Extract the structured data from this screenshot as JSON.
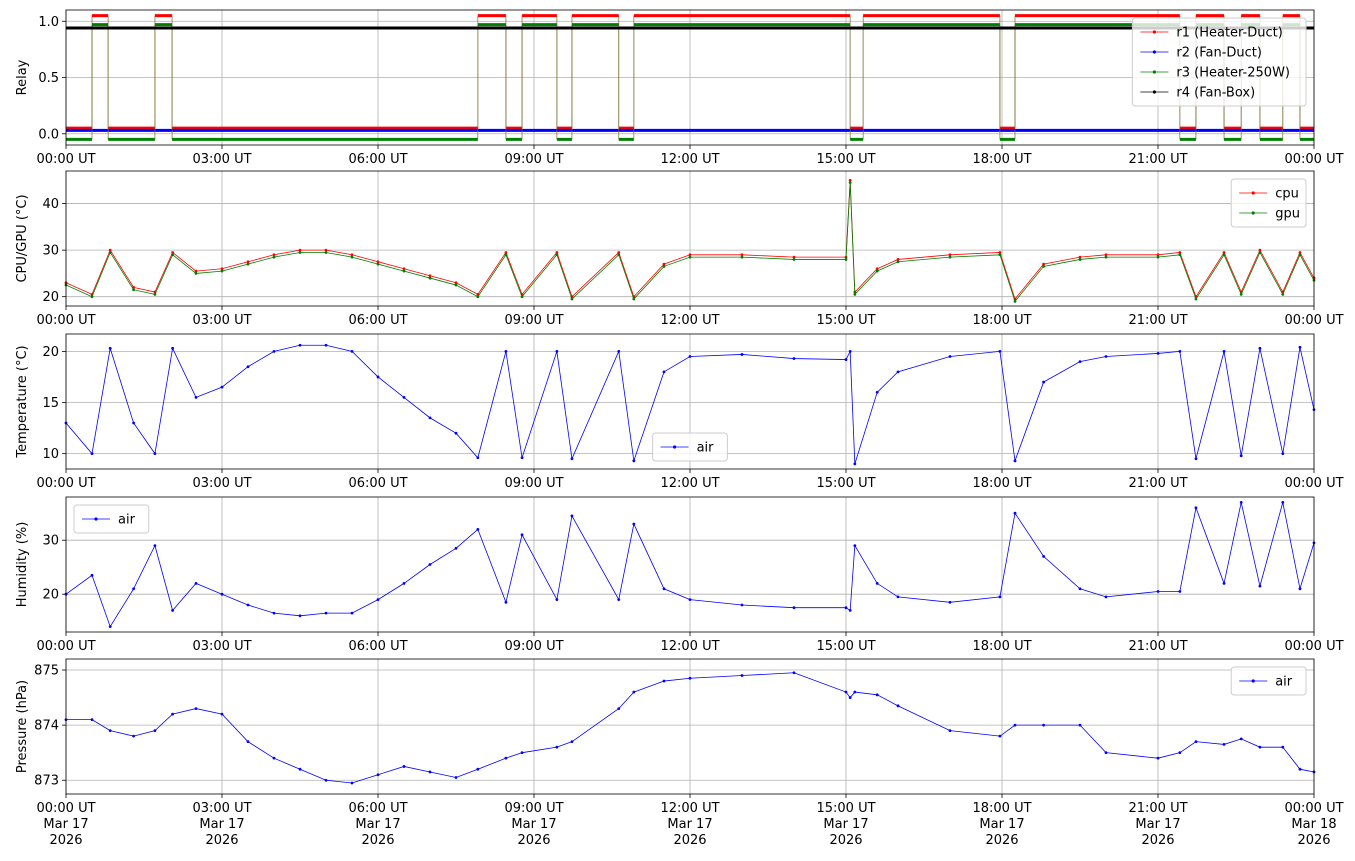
{
  "chart_data": [
    {
      "type": "line",
      "ylabel": "Relay",
      "xlim": [
        0,
        24
      ],
      "ylim": [
        -0.1,
        1.1
      ],
      "xticks": [
        {
          "value": 0,
          "label": "00:00 UT"
        },
        {
          "value": 3,
          "label": "03:00 UT"
        },
        {
          "value": 6,
          "label": "06:00 UT"
        },
        {
          "value": 9,
          "label": "09:00 UT"
        },
        {
          "value": 12,
          "label": "12:00 UT"
        },
        {
          "value": 15,
          "label": "15:00 UT"
        },
        {
          "value": 18,
          "label": "18:00 UT"
        },
        {
          "value": 21,
          "label": "21:00 UT"
        },
        {
          "value": 24,
          "label": "00:00 UT"
        }
      ],
      "yticks": [
        {
          "value": 0,
          "label": "0.0"
        },
        {
          "value": 0.5,
          "label": "0.5"
        },
        {
          "value": 1,
          "label": "1.0"
        }
      ],
      "grid": true,
      "legend": "upper right",
      "series": [
        {
          "name": "r1 (Heater-Duct)",
          "color": "#ff0000",
          "step": "post",
          "x": [
            0,
            0.5,
            0.81,
            1.71,
            2.04,
            7.92,
            8.46,
            8.77,
            9.44,
            9.73,
            10.63,
            10.92,
            15.08,
            15.33,
            17.96,
            18.25,
            21.42,
            21.73,
            22.27,
            22.6,
            22.96,
            23.4,
            23.73,
            24
          ],
          "values": [
            0.05,
            1.05,
            0.05,
            1.05,
            0.05,
            1.05,
            0.05,
            1.05,
            0.05,
            1.05,
            0.05,
            1.05,
            0.05,
            1.05,
            0.05,
            1.05,
            0.05,
            1.05,
            0.05,
            1.05,
            0.05,
            1.05,
            0.05,
            0.05
          ]
        },
        {
          "name": "r2 (Fan-Duct)",
          "color": "#0000ff",
          "step": "post",
          "x": [
            0,
            24
          ],
          "values": [
            0.03,
            0.03
          ]
        },
        {
          "name": "r3 (Heater-250W)",
          "color": "#008000",
          "step": "post",
          "x": [
            0,
            0.5,
            0.81,
            1.71,
            2.04,
            7.92,
            8.46,
            8.77,
            9.44,
            9.73,
            10.63,
            10.92,
            15.08,
            15.33,
            17.96,
            18.25,
            21.42,
            21.73,
            22.27,
            22.6,
            22.96,
            23.4,
            23.73,
            24
          ],
          "values": [
            -0.05,
            0.97,
            -0.05,
            0.97,
            -0.05,
            0.97,
            -0.05,
            0.97,
            -0.05,
            0.97,
            -0.05,
            0.97,
            -0.05,
            0.97,
            -0.05,
            0.97,
            -0.05,
            0.97,
            -0.05,
            0.97,
            -0.05,
            0.97,
            -0.05,
            -0.05
          ]
        },
        {
          "name": "r4 (Fan-Box)",
          "color": "#000000",
          "step": "post",
          "x": [
            0,
            24
          ],
          "values": [
            0.94,
            0.94
          ]
        }
      ]
    },
    {
      "type": "line",
      "ylabel": "CPU/GPU (°C)",
      "xlim": [
        0,
        24
      ],
      "ylim": [
        18,
        47
      ],
      "xticks": [
        {
          "value": 0,
          "label": "00:00 UT"
        },
        {
          "value": 3,
          "label": "03:00 UT"
        },
        {
          "value": 6,
          "label": "06:00 UT"
        },
        {
          "value": 9,
          "label": "09:00 UT"
        },
        {
          "value": 12,
          "label": "12:00 UT"
        },
        {
          "value": 15,
          "label": "15:00 UT"
        },
        {
          "value": 18,
          "label": "18:00 UT"
        },
        {
          "value": 21,
          "label": "21:00 UT"
        },
        {
          "value": 24,
          "label": "00:00 UT"
        }
      ],
      "yticks": [
        20,
        30,
        40
      ],
      "grid": true,
      "legend": "upper right",
      "x": [
        0,
        0.5,
        0.85,
        1.3,
        1.71,
        2.05,
        2.5,
        3,
        3.5,
        4,
        4.5,
        5,
        5.5,
        6,
        6.5,
        7,
        7.5,
        7.92,
        8.46,
        8.77,
        9.44,
        9.73,
        10.63,
        10.92,
        11.5,
        12,
        13,
        14,
        15,
        15.08,
        15.17,
        15.6,
        16,
        17,
        17.96,
        18.25,
        18.8,
        19.5,
        20,
        21,
        21.42,
        21.73,
        22.27,
        22.6,
        22.96,
        23.4,
        23.73,
        24
      ],
      "series": [
        {
          "name": "cpu",
          "color": "#ff0000",
          "values": [
            23,
            20.5,
            30,
            22,
            21,
            29.5,
            25.5,
            26,
            27.5,
            29,
            30,
            30,
            29,
            27.5,
            26,
            24.5,
            23,
            20.5,
            29.5,
            20.5,
            29.5,
            20,
            29.5,
            20,
            27,
            29,
            29,
            28.5,
            28.5,
            45,
            21,
            26,
            28,
            29,
            29.5,
            19.5,
            27,
            28.5,
            29,
            29,
            29.5,
            20,
            29.5,
            21,
            30,
            21,
            29.5,
            24
          ]
        },
        {
          "name": "gpu",
          "color": "#008000",
          "values": [
            22.5,
            20,
            29.5,
            21.5,
            20.5,
            29,
            25,
            25.5,
            27,
            28.5,
            29.5,
            29.5,
            28.5,
            27,
            25.5,
            24,
            22.5,
            20,
            29,
            20,
            29,
            19.5,
            29,
            19.5,
            26.5,
            28.5,
            28.5,
            28,
            28,
            44.5,
            20.5,
            25.5,
            27.5,
            28.5,
            29,
            19,
            26.5,
            28,
            28.5,
            28.5,
            29,
            19.5,
            29,
            20.5,
            29.5,
            20.5,
            29,
            23.5
          ]
        }
      ]
    },
    {
      "type": "line",
      "ylabel": "Temperature (°C)",
      "xlim": [
        0,
        24
      ],
      "ylim": [
        8.5,
        21.7
      ],
      "xticks": [
        {
          "value": 0,
          "label": "00:00 UT"
        },
        {
          "value": 3,
          "label": "03:00 UT"
        },
        {
          "value": 6,
          "label": "06:00 UT"
        },
        {
          "value": 9,
          "label": "09:00 UT"
        },
        {
          "value": 12,
          "label": "12:00 UT"
        },
        {
          "value": 15,
          "label": "15:00 UT"
        },
        {
          "value": 18,
          "label": "18:00 UT"
        },
        {
          "value": 21,
          "label": "21:00 UT"
        },
        {
          "value": 24,
          "label": "00:00 UT"
        }
      ],
      "yticks": [
        10,
        15,
        20
      ],
      "grid": true,
      "legend": "lower center",
      "x": [
        0,
        0.5,
        0.85,
        1.3,
        1.71,
        2.05,
        2.5,
        3,
        3.5,
        4,
        4.5,
        5,
        5.5,
        6,
        6.5,
        7,
        7.5,
        7.92,
        8.46,
        8.77,
        9.44,
        9.73,
        10.63,
        10.92,
        11.5,
        12,
        13,
        14,
        15,
        15.08,
        15.17,
        15.6,
        16,
        17,
        17.96,
        18.25,
        18.8,
        19.5,
        20,
        21,
        21.42,
        21.73,
        22.27,
        22.6,
        22.96,
        23.4,
        23.73,
        24
      ],
      "series": [
        {
          "name": "air",
          "color": "#0000ff",
          "values": [
            13,
            10,
            20.3,
            13,
            10,
            20.3,
            15.5,
            16.5,
            18.5,
            20,
            20.6,
            20.6,
            20,
            17.5,
            15.5,
            13.5,
            12,
            9.6,
            20,
            9.6,
            20,
            9.5,
            20,
            9.3,
            18,
            19.5,
            19.7,
            19.3,
            19.2,
            20,
            9,
            16,
            18,
            19.5,
            20,
            9.3,
            17,
            19,
            19.5,
            19.8,
            20,
            9.5,
            20,
            9.8,
            20.3,
            10,
            20.4,
            14.3
          ]
        }
      ]
    },
    {
      "type": "line",
      "ylabel": "Humidity (%)",
      "xlim": [
        0,
        24
      ],
      "ylim": [
        13,
        38
      ],
      "xticks": [
        {
          "value": 0,
          "label": "00:00 UT"
        },
        {
          "value": 3,
          "label": "03:00 UT"
        },
        {
          "value": 6,
          "label": "06:00 UT"
        },
        {
          "value": 9,
          "label": "09:00 UT"
        },
        {
          "value": 12,
          "label": "12:00 UT"
        },
        {
          "value": 15,
          "label": "15:00 UT"
        },
        {
          "value": 18,
          "label": "18:00 UT"
        },
        {
          "value": 21,
          "label": "21:00 UT"
        },
        {
          "value": 24,
          "label": "00:00 UT"
        }
      ],
      "yticks": [
        20,
        30
      ],
      "grid": true,
      "legend": "upper left",
      "x": [
        0,
        0.5,
        0.85,
        1.3,
        1.71,
        2.05,
        2.5,
        3,
        3.5,
        4,
        4.5,
        5,
        5.5,
        6,
        6.5,
        7,
        7.5,
        7.92,
        8.46,
        8.77,
        9.44,
        9.73,
        10.63,
        10.92,
        11.5,
        12,
        13,
        14,
        15,
        15.08,
        15.17,
        15.6,
        16,
        17,
        17.96,
        18.25,
        18.8,
        19.5,
        20,
        21,
        21.42,
        21.73,
        22.27,
        22.6,
        22.96,
        23.4,
        23.73,
        24
      ],
      "series": [
        {
          "name": "air",
          "color": "#0000ff",
          "values": [
            20,
            23.5,
            14,
            21,
            29,
            17,
            22,
            20,
            18,
            16.5,
            16,
            16.5,
            16.5,
            19,
            22,
            25.5,
            28.5,
            32,
            18.5,
            31,
            19,
            34.5,
            19,
            33,
            21,
            19,
            18,
            17.5,
            17.5,
            17,
            29,
            22,
            19.5,
            18.5,
            19.5,
            35,
            27,
            21,
            19.5,
            20.5,
            20.5,
            36,
            22,
            37,
            21.5,
            37,
            21,
            29.5
          ]
        }
      ]
    },
    {
      "type": "line",
      "ylabel": "Pressure (hPa)",
      "xlim": [
        0,
        24
      ],
      "ylim": [
        872.75,
        875.2
      ],
      "xticks": [
        {
          "value": 0,
          "label": [
            "00:00 UT",
            "Mar 17",
            "2026"
          ]
        },
        {
          "value": 3,
          "label": [
            "03:00 UT",
            "Mar 17",
            "2026"
          ]
        },
        {
          "value": 6,
          "label": [
            "06:00 UT",
            "Mar 17",
            "2026"
          ]
        },
        {
          "value": 9,
          "label": [
            "09:00 UT",
            "Mar 17",
            "2026"
          ]
        },
        {
          "value": 12,
          "label": [
            "12:00 UT",
            "Mar 17",
            "2026"
          ]
        },
        {
          "value": 15,
          "label": [
            "15:00 UT",
            "Mar 17",
            "2026"
          ]
        },
        {
          "value": 18,
          "label": [
            "18:00 UT",
            "Mar 17",
            "2026"
          ]
        },
        {
          "value": 21,
          "label": [
            "21:00 UT",
            "Mar 17",
            "2026"
          ]
        },
        {
          "value": 24,
          "label": [
            "00:00 UT",
            "Mar 18",
            "2026"
          ]
        }
      ],
      "yticks": [
        873,
        874,
        875
      ],
      "grid": true,
      "legend": "upper right",
      "x": [
        0,
        0.5,
        0.85,
        1.3,
        1.71,
        2.05,
        2.5,
        3,
        3.5,
        4,
        4.5,
        5,
        5.5,
        6,
        6.5,
        7,
        7.5,
        7.92,
        8.46,
        8.77,
        9.44,
        9.73,
        10.63,
        10.92,
        11.5,
        12,
        13,
        14,
        15,
        15.08,
        15.17,
        15.6,
        16,
        17,
        17.96,
        18.25,
        18.8,
        19.5,
        20,
        21,
        21.42,
        21.73,
        22.27,
        22.6,
        22.96,
        23.4,
        23.73,
        24
      ],
      "series": [
        {
          "name": "air",
          "color": "#0000ff",
          "values": [
            874.1,
            874.1,
            873.9,
            873.8,
            873.9,
            874.2,
            874.3,
            874.2,
            873.7,
            873.4,
            873.2,
            873.0,
            872.95,
            873.1,
            873.25,
            873.15,
            873.05,
            873.2,
            873.4,
            873.5,
            873.6,
            873.7,
            874.3,
            874.6,
            874.8,
            874.85,
            874.9,
            874.95,
            874.6,
            874.5,
            874.6,
            874.55,
            874.35,
            873.9,
            873.8,
            874.0,
            874.0,
            874.0,
            873.5,
            873.4,
            873.5,
            873.7,
            873.65,
            873.75,
            873.6,
            873.6,
            873.2,
            873.15
          ]
        }
      ]
    }
  ]
}
